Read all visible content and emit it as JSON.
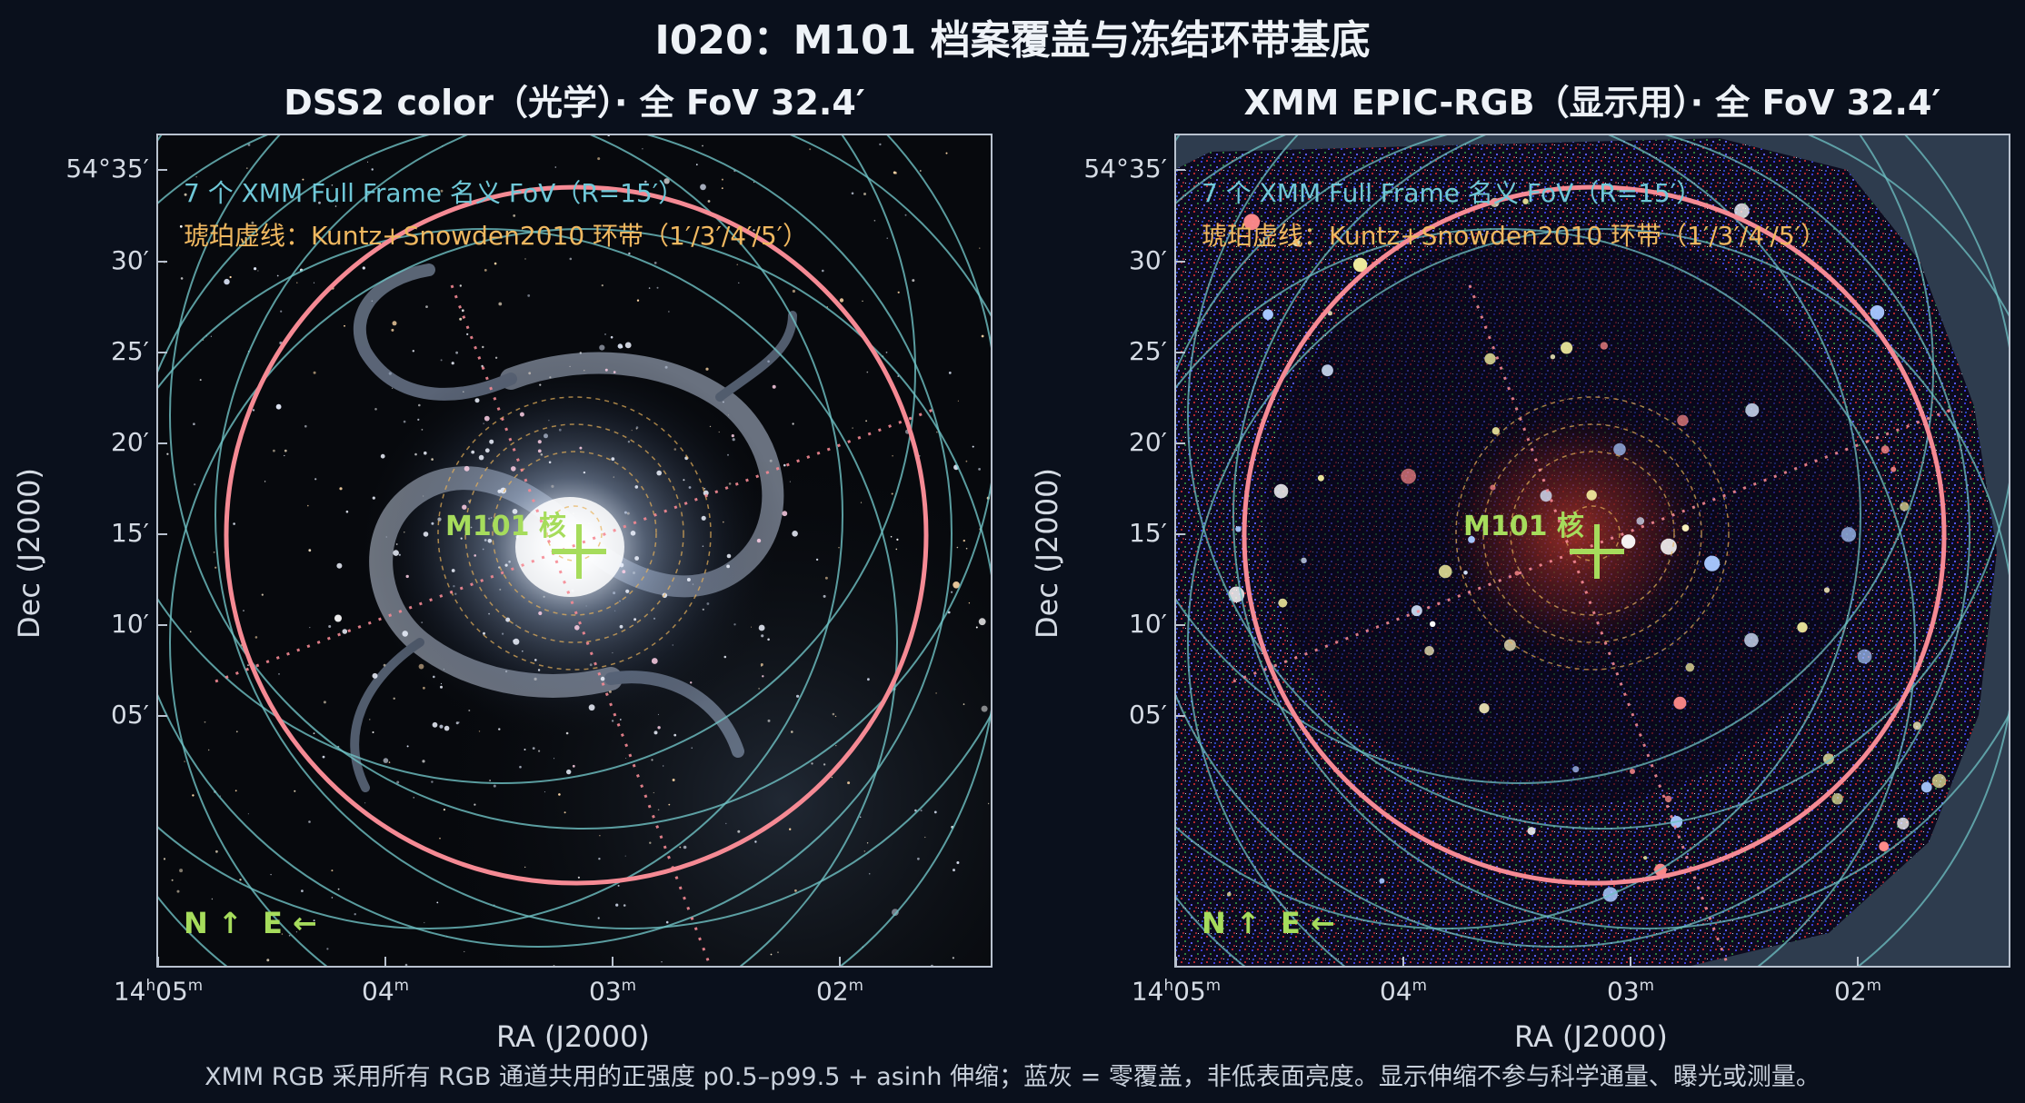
{
  "title": "I020：M101 档案覆盖与冻结环带基底",
  "panels": [
    {
      "title": "DSS2 color（光学）· 全 FoV 32.4′",
      "legend_line1": "7 个 XMM Full Frame 名义 FoV（R=15′）",
      "legend_line2": "琥珀虚线：Kuntz+Snowden2010 环带（1′/3′/4′/5′）",
      "center_label": "M101 核",
      "orientation": "N ↑  E ←",
      "xlabel": "RA (J2000)",
      "ylabel": "Dec (J2000)"
    },
    {
      "title": "XMM EPIC-RGB（显示用）· 全 FoV 32.4′",
      "legend_line1": "7 个 XMM Full Frame 名义 FoV（R=15′）",
      "legend_line2": "琥珀虚线：Kuntz+Snowden2010 环带（1′/3′/4′/5′）",
      "center_label": "M101 核",
      "orientation": "N ↑  E ←",
      "xlabel": "RA (J2000)",
      "ylabel": "Dec (J2000)"
    }
  ],
  "y_ticks": [
    "54°35′",
    "30′",
    "25′",
    "20′",
    "15′",
    "10′",
    "05′"
  ],
  "x_ticks": [
    {
      "h": "14",
      "m": "05"
    },
    {
      "m": "04"
    },
    {
      "m": "03"
    },
    {
      "m": "02"
    }
  ],
  "caption": "XMM RGB 采用所有 RGB 通道共用的正强度 p0.5–p99.5 + asinh 伸缩；蓝灰 = 零覆盖，非低表面亮度。显示伸缩不参与科学通量、曝光或测量。",
  "colors": {
    "background": "#0a101c",
    "pink_circle": "#f58a94",
    "teal_circles": "#6fc2c4",
    "amber_rings": "#e8b25a",
    "marker_green": "#a6dc5c",
    "legend_teal": "#6fc8d8",
    "legend_amber": "#f0b860",
    "zero_coverage": "#2e3c4e"
  }
}
